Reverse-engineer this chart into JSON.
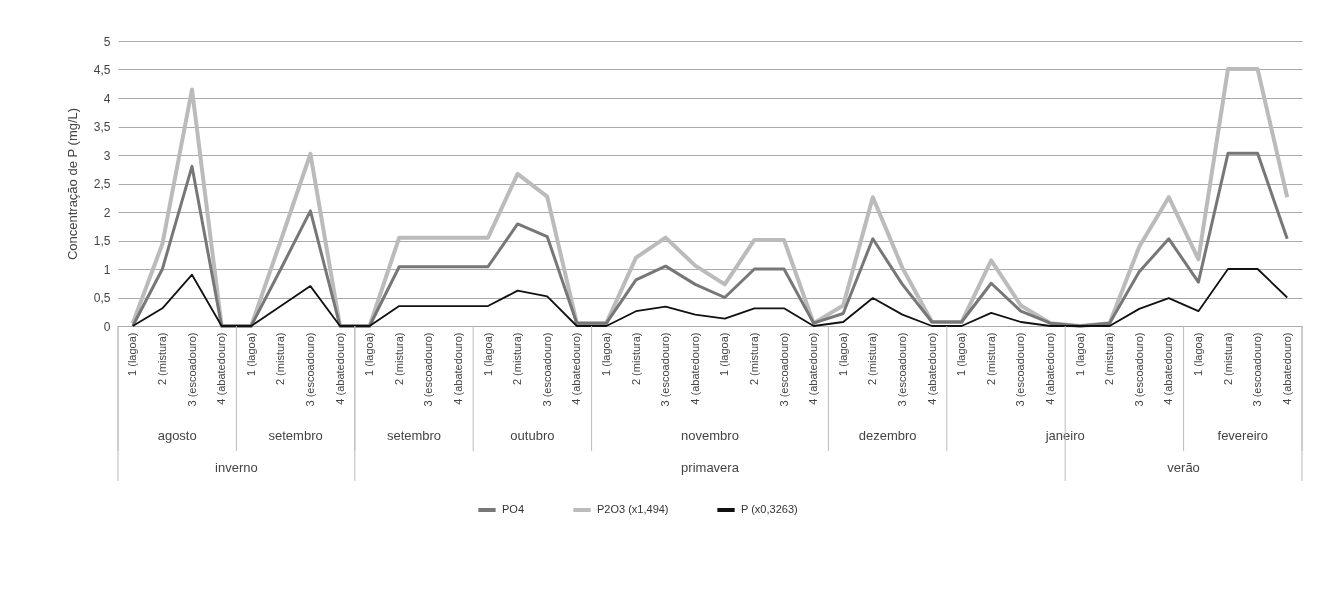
{
  "chart_data": {
    "type": "line",
    "ylabel": "Concentração de P (mg/L)",
    "categories": [
      "1  (lagoa)",
      "2 (mistura)",
      "3 (escoadouro)",
      "4 (abatedouro)",
      "1  (lagoa)",
      "2 (mistura)",
      "3 (escoadouro)",
      "4 (abatedouro)",
      "1  (lagoa)",
      "2 (mistura)",
      "3 (escoadouro)",
      "4 (abatedouro)",
      "1  (lagoa)",
      "2 (mistura)",
      "3 (escoadouro)",
      "4 (abatedouro)",
      "1  (lagoa)",
      "2 (mistura)",
      "3 (escoadouro)",
      "4 (abatedouro)",
      "1  (lagoa)",
      "2 (mistura)",
      "3 (escoadouro)",
      "4 (abatedouro)",
      "1  (lagoa)",
      "2 (mistura)",
      "3 (escoadouro)",
      "4 (abatedouro)",
      "1  (lagoa)",
      "2 (mistura)",
      "3 (escoadouro)",
      "4 (abatedouro)",
      "1  (lagoa)",
      "2 (mistura)",
      "3 (escoadouro)",
      "4 (abatedouro)",
      "1  (lagoa)",
      "2 (mistura)",
      "3 (escoadouro)",
      "4 (abatedouro)"
    ],
    "series": [
      {
        "name": "PO4",
        "color": "#777777",
        "values": [
          0,
          1.0,
          2.8,
          0,
          0,
          1.0,
          2.02,
          0,
          0,
          1.04,
          1.04,
          1.04,
          1.04,
          1.79,
          1.57,
          0.05,
          0.05,
          0.81,
          1.05,
          0.73,
          0.5,
          1.0,
          1.0,
          0.05,
          0.22,
          1.53,
          0.73,
          0.07,
          0.07,
          0.75,
          0.26,
          0.05,
          0,
          0.05,
          0.95,
          1.53,
          0.77,
          3.03,
          3.03,
          1.53
        ]
      },
      {
        "name": "P2O3 (x1,494)",
        "color": "#bbbbbb",
        "values": [
          0.05,
          1.44,
          4.15,
          0,
          0,
          1.5,
          3.02,
          0,
          0,
          1.55,
          1.55,
          1.55,
          1.55,
          2.67,
          2.27,
          0.05,
          0.05,
          1.2,
          1.55,
          1.06,
          0.73,
          1.51,
          1.51,
          0.05,
          0.36,
          2.26,
          1.02,
          0.07,
          0.07,
          1.15,
          0.36,
          0.05,
          0,
          0.05,
          1.39,
          2.26,
          1.17,
          4.51,
          4.51,
          2.26
        ]
      },
      {
        "name": "P (x0,3263)",
        "color": "#111111",
        "values": [
          0,
          0.31,
          0.9,
          0,
          0,
          0.35,
          0.7,
          0,
          0,
          0.35,
          0.35,
          0.35,
          0.35,
          0.62,
          0.52,
          0,
          0,
          0.26,
          0.34,
          0.2,
          0.13,
          0.31,
          0.31,
          0,
          0.07,
          0.49,
          0.2,
          0,
          0,
          0.23,
          0.07,
          0,
          0,
          0,
          0.3,
          0.49,
          0.26,
          1.0,
          1.0,
          0.5
        ]
      }
    ],
    "ylim": [
      0,
      5
    ],
    "yticks": [
      0,
      {
        "value": 0.5,
        "label": "0,5"
      },
      1,
      {
        "value": 1.5,
        "label": "1,5"
      },
      2,
      {
        "value": 2.5,
        "label": "2,5"
      },
      3,
      {
        "value": 3.5,
        "label": "3,5"
      },
      4,
      {
        "value": 4.5,
        "label": "4,5"
      },
      5
    ],
    "grid": "y",
    "legend": "bottom",
    "annotations": [
      "agosto",
      "setembro",
      "setembro",
      "outubro",
      "novembro",
      "dezembro",
      "janeiro",
      "fevereiro",
      "inverno",
      "primavera",
      "verão"
    ]
  }
}
